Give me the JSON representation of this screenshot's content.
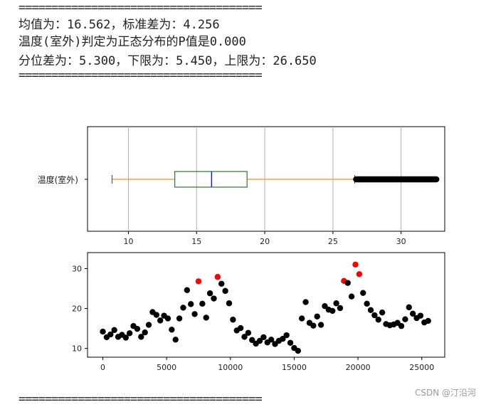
{
  "output": {
    "separator_top": "=====================================",
    "line1": "均值为：16.562，标准差为：4.256",
    "line2": "温度(室外)判定为正态分布的P值是0.000",
    "line3": "分位差为：5.300，下限为：5.450，上限为：26.650",
    "separator_mid": "=====================================",
    "separator_bottom": "====================================="
  },
  "chart_data": [
    {
      "type": "box",
      "orientation": "horizontal",
      "category_label": "温度(室外)",
      "xlim": [
        7.0,
        33.2
      ],
      "xticks": [
        10,
        15,
        20,
        25,
        30
      ],
      "grid": true,
      "whisker_low": 8.8,
      "q1": 13.4,
      "median": 16.1,
      "q3": 18.7,
      "whisker_high": 26.6,
      "outlier_range": [
        26.7,
        32.6
      ],
      "colors": {
        "box": "#2a7a2a",
        "median": "#2020c0",
        "whisker": "#ff8c1a",
        "outlier": "#000000"
      }
    },
    {
      "type": "scatter",
      "xlim": [
        -1200,
        26800
      ],
      "ylim": [
        7.8,
        34
      ],
      "xticks": [
        0,
        5000,
        10000,
        15000,
        20000,
        25000
      ],
      "yticks": [
        10,
        20,
        30
      ],
      "normal_color": "#000000",
      "outlier_color": "#ff0000",
      "threshold": 26.65,
      "x": [
        0,
        300,
        600,
        900,
        1200,
        1500,
        1800,
        2100,
        2400,
        2700,
        3000,
        3300,
        3600,
        3900,
        4200,
        4500,
        4800,
        5100,
        5400,
        5700,
        6000,
        6300,
        6600,
        6900,
        7200,
        7500,
        7800,
        8100,
        8400,
        8700,
        9000,
        9300,
        9600,
        9900,
        10200,
        10500,
        10800,
        11100,
        11400,
        11700,
        12000,
        12300,
        12600,
        12900,
        13200,
        13500,
        13800,
        14100,
        14400,
        14700,
        15000,
        15300,
        15600,
        15900,
        16200,
        16500,
        16800,
        17100,
        17400,
        17700,
        18000,
        18300,
        18600,
        18900,
        19200,
        19500,
        19800,
        20100,
        20400,
        20700,
        21000,
        21300,
        21600,
        21900,
        22200,
        22500,
        22800,
        23100,
        23400,
        23700,
        24000,
        24300,
        24600,
        24900,
        25200,
        25500
      ],
      "y": [
        14.2,
        12.8,
        13.5,
        14.6,
        12.9,
        13.4,
        12.7,
        13.8,
        15.6,
        14.9,
        12.9,
        14.0,
        15.9,
        19.1,
        18.4,
        17.0,
        18.2,
        17.5,
        14.7,
        12.2,
        17.5,
        20.2,
        24.6,
        21.1,
        18.6,
        26.8,
        21.2,
        17.7,
        23.8,
        22.5,
        27.9,
        26.2,
        24.4,
        21.3,
        17.2,
        14.5,
        15.1,
        12.9,
        13.9,
        12.1,
        11.2,
        11.9,
        12.8,
        11.5,
        12.2,
        11.1,
        11.9,
        12.4,
        13.3,
        11.4,
        10.1,
        9.4,
        17.5,
        21.6,
        16.4,
        15.7,
        18.0,
        15.9,
        20.6,
        19.7,
        19.4,
        21.3,
        20.1,
        26.9,
        26.4,
        23.0,
        31.0,
        28.6,
        23.9,
        21.2,
        19.6,
        18.3,
        17.2,
        19.0,
        16.1,
        15.8,
        16.0,
        16.4,
        15.6,
        17.3,
        20.3,
        18.7,
        17.6,
        18.2,
        16.5,
        16.9
      ]
    }
  ],
  "watermark": "CSDN @汀沿河"
}
